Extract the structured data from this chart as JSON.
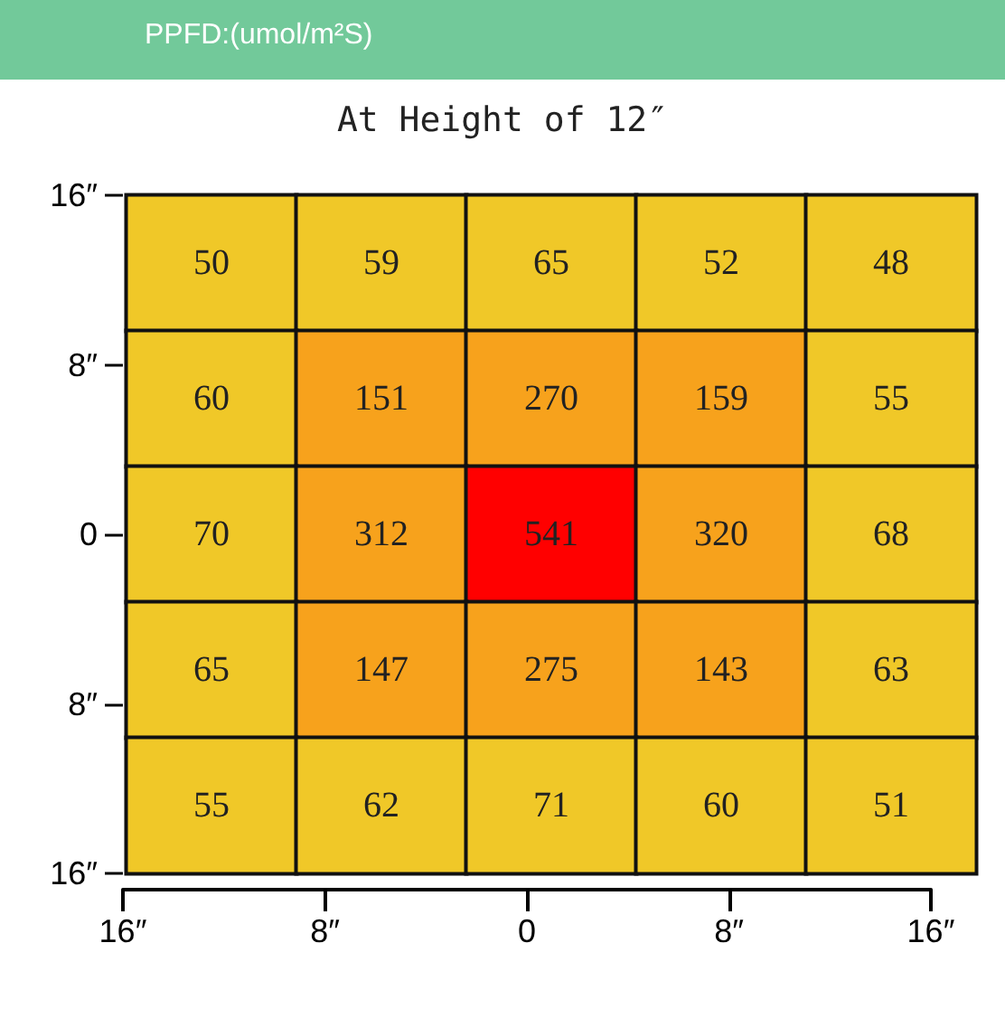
{
  "chart_data": {
    "type": "heatmap",
    "title": "At Height of 12″",
    "annotations": [
      "PPFD:(umol/m²S)"
    ],
    "categories": [
      "16″",
      "8″",
      "0",
      "8″",
      "16″"
    ],
    "y_categories": [
      "16″",
      "8″",
      "0",
      "8″",
      "16″"
    ],
    "cells": [
      [
        50,
        59,
        65,
        52,
        48
      ],
      [
        60,
        151,
        270,
        159,
        55
      ],
      [
        70,
        312,
        541,
        320,
        68
      ],
      [
        65,
        147,
        275,
        143,
        63
      ],
      [
        55,
        62,
        71,
        60,
        51
      ]
    ],
    "colors": [
      "#f0c828",
      "#f0c828",
      "#f0c828",
      "#f0c828",
      "#f0c828",
      "#f0c828",
      "#f7a21c",
      "#f7a21c",
      "#f7a21c",
      "#f0c828",
      "#f0c828",
      "#f7a21c",
      "#ff0000",
      "#f7a21c",
      "#f0c828",
      "#f0c828",
      "#f7a21c",
      "#f7a21c",
      "#f7a21c",
      "#f0c828",
      "#f0c828",
      "#f0c828",
      "#f0c828",
      "#f0c828",
      "#f0c828"
    ],
    "data_labels": true
  }
}
